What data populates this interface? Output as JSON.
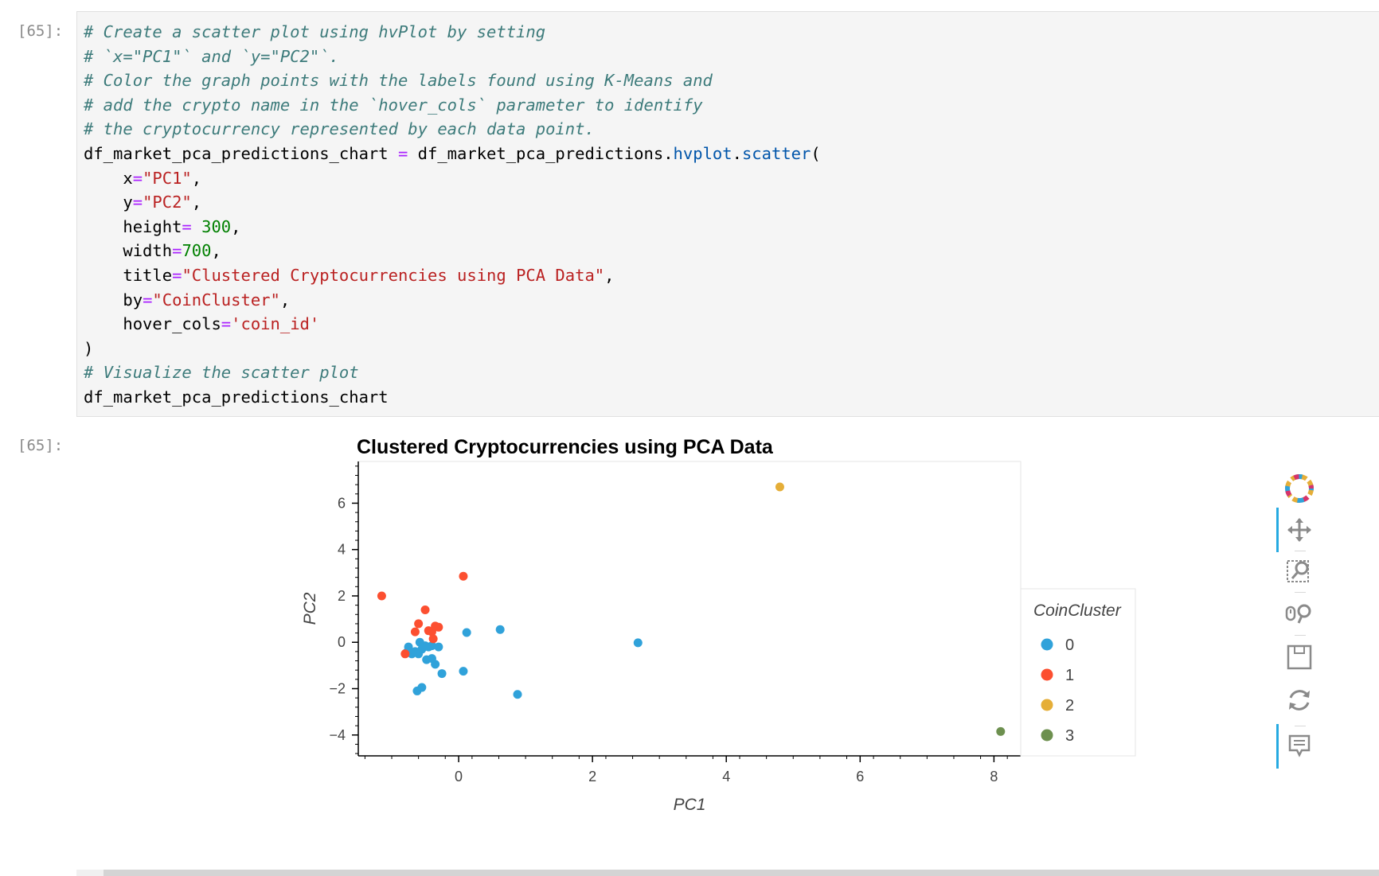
{
  "input_prompt": "[65]:",
  "output_prompt": "[65]:",
  "code_lines": [
    [
      {
        "t": "# Create a scatter plot using hvPlot by setting",
        "k": "c"
      }
    ],
    [
      {
        "t": "# `x=\"PC1\"` and `y=\"PC2\"`.",
        "k": "c"
      }
    ],
    [
      {
        "t": "# Color the graph points with the labels found using K-Means and",
        "k": "c"
      }
    ],
    [
      {
        "t": "# add the crypto name in the `hover_cols` parameter to identify",
        "k": "c"
      }
    ],
    [
      {
        "t": "# the cryptocurrency represented by each data point.",
        "k": "c"
      }
    ],
    [
      {
        "t": "df_market_pca_predictions_chart ",
        "k": ""
      },
      {
        "t": "=",
        "k": "o"
      },
      {
        "t": " df_market_pca_predictions.",
        "k": ""
      },
      {
        "t": "hvplot",
        "k": "a"
      },
      {
        "t": ".",
        "k": ""
      },
      {
        "t": "scatter",
        "k": "a"
      },
      {
        "t": "(",
        "k": ""
      }
    ],
    [
      {
        "t": "    x",
        "k": ""
      },
      {
        "t": "=",
        "k": "o"
      },
      {
        "t": "\"PC1\"",
        "k": "s"
      },
      {
        "t": ",",
        "k": ""
      }
    ],
    [
      {
        "t": "    y",
        "k": ""
      },
      {
        "t": "=",
        "k": "o"
      },
      {
        "t": "\"PC2\"",
        "k": "s"
      },
      {
        "t": ",",
        "k": ""
      }
    ],
    [
      {
        "t": "    height",
        "k": ""
      },
      {
        "t": "=",
        "k": "o"
      },
      {
        "t": " ",
        "k": ""
      },
      {
        "t": "300",
        "k": "n"
      },
      {
        "t": ",",
        "k": ""
      }
    ],
    [
      {
        "t": "    width",
        "k": ""
      },
      {
        "t": "=",
        "k": "o"
      },
      {
        "t": "700",
        "k": "n"
      },
      {
        "t": ",",
        "k": ""
      }
    ],
    [
      {
        "t": "    title",
        "k": ""
      },
      {
        "t": "=",
        "k": "o"
      },
      {
        "t": "\"Clustered Cryptocurrencies using PCA Data\"",
        "k": "s"
      },
      {
        "t": ",",
        "k": ""
      }
    ],
    [
      {
        "t": "    by",
        "k": ""
      },
      {
        "t": "=",
        "k": "o"
      },
      {
        "t": "\"CoinCluster\"",
        "k": "s"
      },
      {
        "t": ",",
        "k": ""
      }
    ],
    [
      {
        "t": "    hover_cols",
        "k": ""
      },
      {
        "t": "=",
        "k": "o"
      },
      {
        "t": "'coin_id'",
        "k": "s"
      }
    ],
    [
      {
        "t": ")",
        "k": ""
      }
    ],
    [
      {
        "t": "# Visualize the scatter plot",
        "k": "c"
      }
    ],
    [
      {
        "t": "df_market_pca_predictions_chart",
        "k": ""
      }
    ]
  ],
  "chart_data": {
    "type": "scatter",
    "title": "Clustered Cryptocurrencies using PCA Data",
    "xlabel": "PC1",
    "ylabel": "PC2",
    "xlim": [
      -1.5,
      8.4
    ],
    "ylim": [
      -4.9,
      7.8
    ],
    "xticks": [
      0,
      2,
      4,
      6,
      8
    ],
    "yticks": [
      -4,
      -2,
      0,
      2,
      4,
      6
    ],
    "legend_title": "CoinCluster",
    "legend_placement": "right",
    "series": [
      {
        "name": "0",
        "color": "#30a2da",
        "points": [
          [
            -0.75,
            -0.2
          ],
          [
            -0.78,
            -0.45
          ],
          [
            -0.7,
            -0.5
          ],
          [
            -0.65,
            -0.4
          ],
          [
            -0.6,
            -0.5
          ],
          [
            -0.58,
            0.0
          ],
          [
            -0.55,
            -0.3
          ],
          [
            -0.5,
            -0.15
          ],
          [
            -0.45,
            -0.2
          ],
          [
            -0.4,
            -0.15
          ],
          [
            -0.3,
            -0.2
          ],
          [
            -0.48,
            -0.75
          ],
          [
            -0.4,
            -0.7
          ],
          [
            -0.35,
            -0.95
          ],
          [
            -0.25,
            -1.35
          ],
          [
            -0.55,
            -1.95
          ],
          [
            -0.62,
            -2.1
          ],
          [
            0.07,
            -1.25
          ],
          [
            0.12,
            0.42
          ],
          [
            0.62,
            0.55
          ],
          [
            0.88,
            -2.25
          ],
          [
            2.68,
            -0.02
          ]
        ]
      },
      {
        "name": "1",
        "color": "#fc4f30",
        "points": [
          [
            -1.15,
            2.0
          ],
          [
            -0.8,
            -0.5
          ],
          [
            -0.65,
            0.45
          ],
          [
            -0.6,
            0.8
          ],
          [
            -0.5,
            1.4
          ],
          [
            -0.45,
            0.5
          ],
          [
            -0.4,
            0.45
          ],
          [
            -0.35,
            0.7
          ],
          [
            -0.3,
            0.65
          ],
          [
            -0.38,
            0.15
          ],
          [
            0.07,
            2.85
          ]
        ]
      },
      {
        "name": "2",
        "color": "#e5ae38",
        "points": [
          [
            4.8,
            6.7
          ]
        ]
      },
      {
        "name": "3",
        "color": "#6d904f",
        "points": [
          [
            8.1,
            -3.85
          ]
        ]
      }
    ]
  },
  "toolbar": [
    {
      "name": "bokeh-logo-icon",
      "active": false
    },
    {
      "name": "pan-icon",
      "active": true
    },
    {
      "name": "box-zoom-icon",
      "active": false
    },
    {
      "name": "wheel-zoom-icon",
      "active": false
    },
    {
      "name": "save-icon",
      "active": false
    },
    {
      "name": "reset-icon",
      "active": false
    },
    {
      "name": "hover-icon",
      "active": true
    }
  ]
}
